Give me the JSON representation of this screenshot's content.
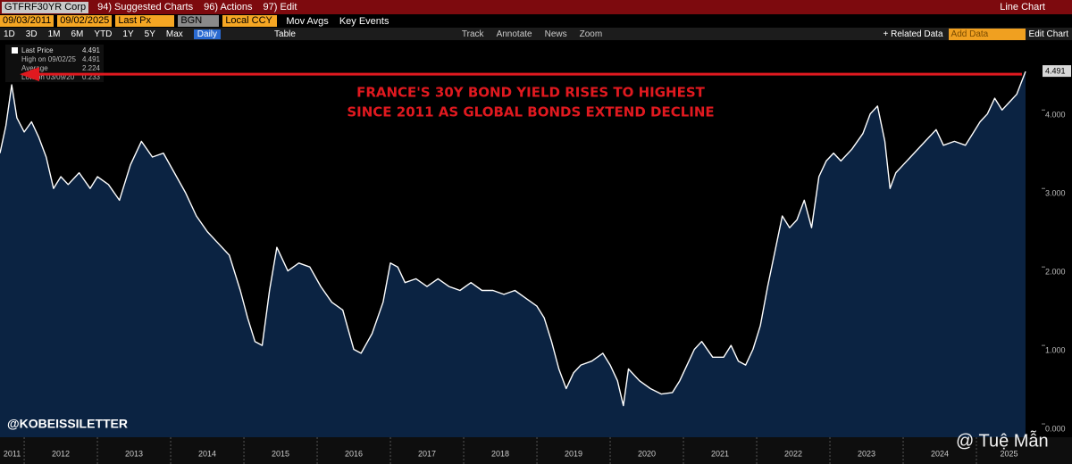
{
  "toolbar": {
    "ticker": "GTFRF30YR Corp",
    "menu": [
      "94) Suggested Charts",
      "96) Actions",
      "97) Edit"
    ],
    "chart_kind": "Line Chart",
    "start_date": "09/03/2011",
    "end_date": "09/02/2025",
    "field": "Last Px",
    "source": "BGN",
    "currency": "Local CCY",
    "options": [
      "Mov Avgs",
      "Key Events"
    ],
    "periods": [
      "1D",
      "3D",
      "1M",
      "6M",
      "YTD",
      "1Y",
      "5Y",
      "Max"
    ],
    "frequency": "Daily",
    "table": "Table",
    "tools": [
      "Track",
      "Annotate",
      "News",
      "Zoom"
    ],
    "related": "+ Related Data",
    "add_data": "Add Data",
    "edit_chart": "Edit Chart"
  },
  "chart_data": {
    "type": "area",
    "annotation": [
      "FRANCE'S 30Y BOND YIELD RISES TO HIGHEST",
      "SINCE 2011 AS GLOBAL BONDS EXTEND DECLINE"
    ],
    "credit": "@KOBEISSILETTER",
    "watermark": "@ Tuệ Mẫn",
    "stats": [
      {
        "label": "High on 09/02/25",
        "value": 4.491
      },
      {
        "label": "Average",
        "value": 2.224
      },
      {
        "label": "Low on 03/09/20",
        "value": 0.233
      }
    ],
    "x": [
      2011.67,
      2011.75,
      2011.83,
      2011.9,
      2012.0,
      2012.1,
      2012.2,
      2012.3,
      2012.4,
      2012.5,
      2012.6,
      2012.75,
      2012.9,
      2013.0,
      2013.15,
      2013.3,
      2013.45,
      2013.6,
      2013.75,
      2013.9,
      2014.05,
      2014.2,
      2014.35,
      2014.5,
      2014.65,
      2014.8,
      2014.95,
      2015.05,
      2015.15,
      2015.25,
      2015.35,
      2015.45,
      2015.6,
      2015.75,
      2015.9,
      2016.05,
      2016.2,
      2016.35,
      2016.5,
      2016.6,
      2016.75,
      2016.9,
      2017.0,
      2017.1,
      2017.2,
      2017.35,
      2017.5,
      2017.65,
      2017.8,
      2017.95,
      2018.1,
      2018.25,
      2018.4,
      2018.55,
      2018.7,
      2018.85,
      2019.0,
      2019.1,
      2019.2,
      2019.3,
      2019.4,
      2019.5,
      2019.6,
      2019.75,
      2019.9,
      2020.0,
      2020.1,
      2020.18,
      2020.25,
      2020.4,
      2020.55,
      2020.7,
      2020.85,
      2020.95,
      2021.05,
      2021.15,
      2021.25,
      2021.4,
      2021.55,
      2021.65,
      2021.75,
      2021.85,
      2021.95,
      2022.05,
      2022.15,
      2022.25,
      2022.35,
      2022.45,
      2022.55,
      2022.65,
      2022.75,
      2022.85,
      2022.95,
      2023.05,
      2023.15,
      2023.3,
      2023.45,
      2023.55,
      2023.65,
      2023.75,
      2023.82,
      2023.9,
      2024.0,
      2024.15,
      2024.3,
      2024.45,
      2024.55,
      2024.7,
      2024.85,
      2024.95,
      2025.05,
      2025.15,
      2025.25,
      2025.35,
      2025.45,
      2025.55,
      2025.67
    ],
    "series": [
      {
        "name": "Last Price",
        "color": "#ffffff",
        "fill": "#0b2342",
        "values": [
          3.45,
          3.8,
          4.32,
          3.9,
          3.72,
          3.85,
          3.65,
          3.4,
          3.0,
          3.15,
          3.05,
          3.2,
          3.0,
          3.15,
          3.05,
          2.85,
          3.3,
          3.6,
          3.4,
          3.45,
          3.2,
          2.95,
          2.65,
          2.45,
          2.3,
          2.15,
          1.7,
          1.35,
          1.05,
          1.0,
          1.7,
          2.25,
          1.95,
          2.05,
          2.0,
          1.75,
          1.55,
          1.45,
          0.95,
          0.9,
          1.15,
          1.55,
          2.05,
          2.0,
          1.8,
          1.85,
          1.75,
          1.85,
          1.75,
          1.7,
          1.8,
          1.7,
          1.7,
          1.65,
          1.7,
          1.6,
          1.5,
          1.35,
          1.05,
          0.7,
          0.45,
          0.65,
          0.75,
          0.8,
          0.9,
          0.75,
          0.55,
          0.233,
          0.7,
          0.55,
          0.45,
          0.38,
          0.4,
          0.55,
          0.75,
          0.95,
          1.05,
          0.85,
          0.85,
          1.0,
          0.8,
          0.75,
          0.95,
          1.25,
          1.75,
          2.2,
          2.65,
          2.5,
          2.6,
          2.85,
          2.5,
          3.15,
          3.35,
          3.45,
          3.35,
          3.5,
          3.7,
          3.95,
          4.05,
          3.6,
          3.0,
          3.2,
          3.3,
          3.45,
          3.6,
          3.75,
          3.55,
          3.6,
          3.55,
          3.7,
          3.85,
          3.95,
          4.15,
          4.0,
          4.1,
          4.2,
          4.491
        ]
      }
    ],
    "xlim": [
      2011.67,
      2025.89
    ],
    "xticks": [
      2011,
      2012,
      2013,
      2014,
      2015,
      2016,
      2017,
      2018,
      2019,
      2020,
      2021,
      2022,
      2023,
      2024,
      2025
    ],
    "ylim": [
      -0.17,
      4.89
    ],
    "yticks": [
      {
        "value": 0,
        "label": "0.000"
      },
      {
        "value": 1,
        "label": "1.000"
      },
      {
        "value": 2,
        "label": "2.000"
      },
      {
        "value": 3,
        "label": "3.000"
      },
      {
        "value": 4,
        "label": "4.000"
      }
    ],
    "annotation_color": "#e0191f",
    "grid": false
  }
}
